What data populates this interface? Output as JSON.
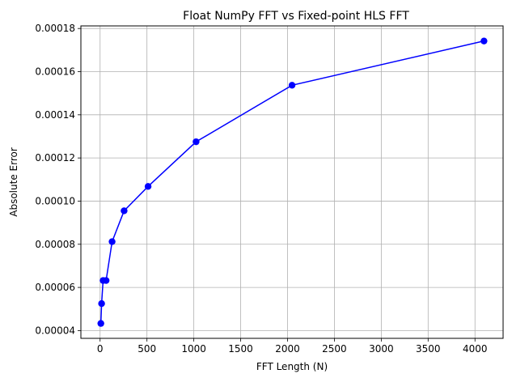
{
  "chart_data": {
    "type": "line",
    "title": "Float NumPy FFT vs Fixed-point HLS FFT",
    "xlabel": "FFT Length (N)",
    "ylabel": "Absolute Error",
    "grid": true,
    "xlim": [
      -205,
      4300
    ],
    "ylim": [
      3.64e-05,
      0.0001812
    ],
    "xticks": [
      0,
      500,
      1000,
      1500,
      2000,
      2500,
      3000,
      3500,
      4000
    ],
    "xtick_labels": [
      "0",
      "500",
      "1000",
      "1500",
      "2000",
      "2500",
      "3000",
      "3500",
      "4000"
    ],
    "yticks": [
      4e-05,
      6e-05,
      8e-05,
      0.0001,
      0.00012,
      0.00014,
      0.00016,
      0.00018
    ],
    "ytick_labels": [
      "0.00004",
      "0.00006",
      "0.00008",
      "0.00010",
      "0.00012",
      "0.00014",
      "0.00016",
      "0.00018"
    ],
    "series": [
      {
        "color": "#0000ff",
        "marker": "circle",
        "x": [
          8,
          16,
          32,
          64,
          128,
          256,
          512,
          1024,
          2048,
          4096
        ],
        "y": [
          4.33e-05,
          5.25e-05,
          6.32e-05,
          6.32e-05,
          8.12e-05,
          9.55e-05,
          0.0001068,
          0.0001275,
          0.0001537,
          0.0001742
        ]
      }
    ]
  }
}
